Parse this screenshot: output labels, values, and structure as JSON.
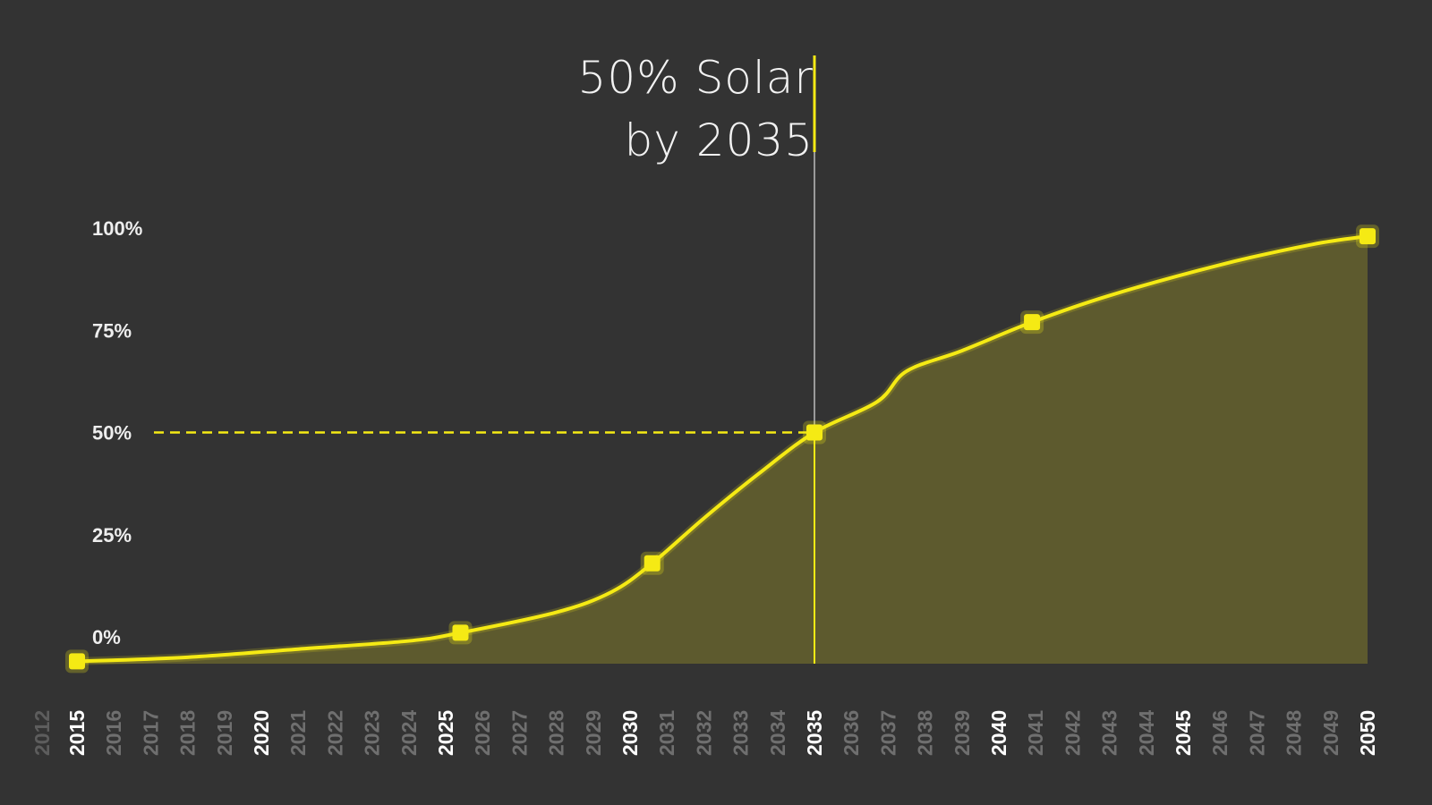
{
  "annotation": {
    "line1": "50% Solar",
    "line2": "by 2035"
  },
  "colors": {
    "background": "#333333",
    "accent": "#f5ea14",
    "area_fill": "#5d5a2e",
    "major_tick": "#ffffff",
    "minor_tick": "#6f6f6f"
  },
  "chart_data": {
    "type": "area",
    "title": "50% Solar by 2035",
    "xlabel": "",
    "ylabel": "",
    "x_ticks": [
      "2012",
      "2015",
      "2016",
      "2017",
      "2018",
      "2019",
      "2020",
      "2021",
      "2022",
      "2023",
      "2024",
      "2025",
      "2026",
      "2027",
      "2028",
      "2029",
      "2030",
      "2031",
      "2032",
      "2033",
      "2034",
      "2035",
      "2036",
      "2037",
      "2038",
      "2039",
      "2040",
      "2041",
      "2042",
      "2043",
      "2044",
      "2045",
      "2046",
      "2047",
      "2048",
      "2049",
      "2050"
    ],
    "major_x_ticks": [
      "2015",
      "2020",
      "2025",
      "2030",
      "2035",
      "2040",
      "2045",
      "2050"
    ],
    "y_ticks": [
      "0%",
      "25%",
      "50%",
      "75%",
      "100%"
    ],
    "ylim": [
      0,
      100
    ],
    "xlim": [
      2015,
      2050
    ],
    "series": [
      {
        "points": [
          {
            "x": 2015,
            "y": -6
          },
          {
            "x": 2018,
            "y": -5
          },
          {
            "x": 2021,
            "y": -3
          },
          {
            "x": 2024,
            "y": -1
          },
          {
            "x": 2025.4,
            "y": 1
          },
          {
            "x": 2028,
            "y": 6
          },
          {
            "x": 2029.5,
            "y": 11
          },
          {
            "x": 2030.6,
            "y": 18
          },
          {
            "x": 2032,
            "y": 29
          },
          {
            "x": 2033.5,
            "y": 40
          },
          {
            "x": 2035,
            "y": 50
          },
          {
            "x": 2036.7,
            "y": 57.5
          },
          {
            "x": 2037.5,
            "y": 65
          },
          {
            "x": 2039,
            "y": 70
          },
          {
            "x": 2040.9,
            "y": 77
          },
          {
            "x": 2043,
            "y": 83.5
          },
          {
            "x": 2046,
            "y": 91
          },
          {
            "x": 2048.5,
            "y": 96
          },
          {
            "x": 2050,
            "y": 98
          }
        ],
        "markers": [
          {
            "x": 2015,
            "y": -6
          },
          {
            "x": 2025.4,
            "y": 1
          },
          {
            "x": 2030.6,
            "y": 18
          },
          {
            "x": 2035,
            "y": 50
          },
          {
            "x": 2040.9,
            "y": 77
          },
          {
            "x": 2050,
            "y": 98
          }
        ]
      }
    ],
    "reference": {
      "x": 2035,
      "y": 50
    }
  }
}
